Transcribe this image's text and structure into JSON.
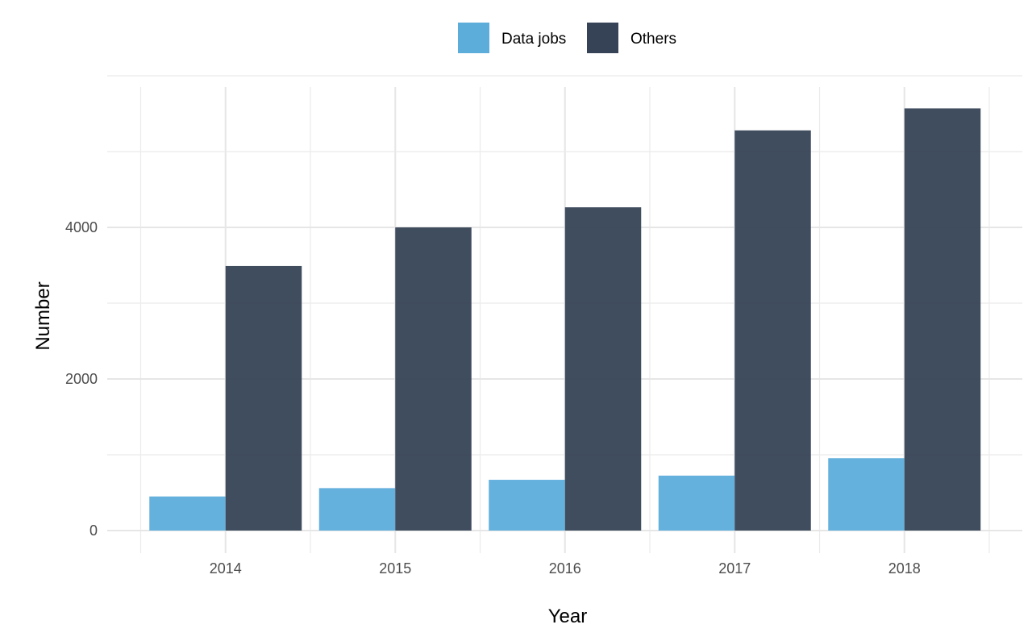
{
  "chart_data": {
    "type": "bar",
    "categories": [
      "2014",
      "2015",
      "2016",
      "2017",
      "2018"
    ],
    "series": [
      {
        "name": "Data jobs",
        "color": "#5DADDB",
        "values": [
          450,
          560,
          670,
          725,
          955
        ]
      },
      {
        "name": "Others",
        "color": "#364356",
        "values": [
          3490,
          4000,
          4265,
          5280,
          5570
        ]
      }
    ],
    "xlabel": "Year",
    "ylabel": "Number",
    "ylim": [
      0,
      6000
    ],
    "yticks": [
      0,
      2000,
      4000
    ],
    "grid": true,
    "legend_position": "top"
  }
}
